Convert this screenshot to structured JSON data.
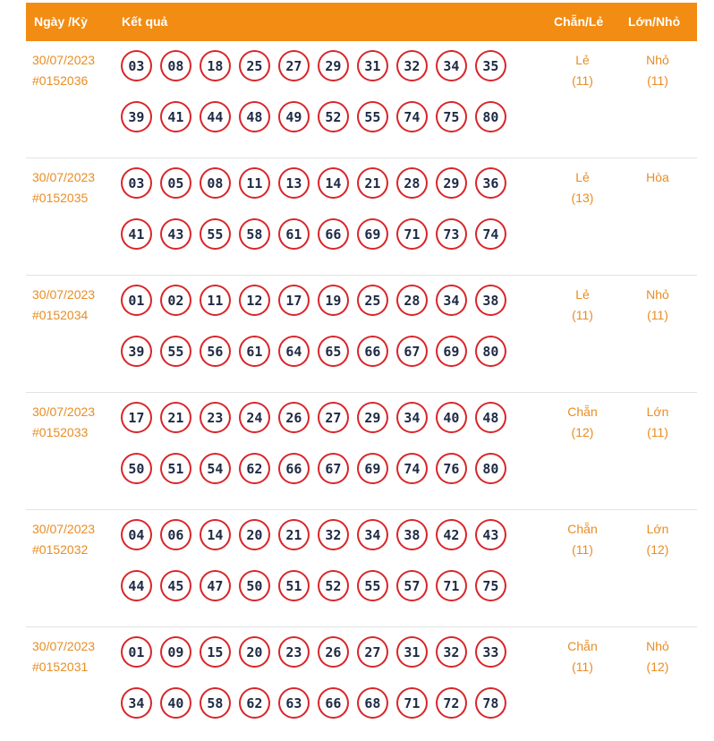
{
  "header": {
    "date_label": "Ngày /Kỳ",
    "result_label": "Kết quả",
    "even_odd_label": "Chẵn/Lẻ",
    "size_label": "Lớn/Nhỏ"
  },
  "rows": [
    {
      "date": "30/07/2023",
      "period": "#0152036",
      "numbers_1": [
        "03",
        "08",
        "18",
        "25",
        "27",
        "29",
        "31",
        "32",
        "34",
        "35"
      ],
      "numbers_2": [
        "39",
        "41",
        "44",
        "48",
        "49",
        "52",
        "55",
        "74",
        "75",
        "80"
      ],
      "even_odd": "Lẻ",
      "even_odd_count": "(11)",
      "size": "Nhỏ",
      "size_count": "(11)"
    },
    {
      "date": "30/07/2023",
      "period": "#0152035",
      "numbers_1": [
        "03",
        "05",
        "08",
        "11",
        "13",
        "14",
        "21",
        "28",
        "29",
        "36"
      ],
      "numbers_2": [
        "41",
        "43",
        "55",
        "58",
        "61",
        "66",
        "69",
        "71",
        "73",
        "74"
      ],
      "even_odd": "Lẻ",
      "even_odd_count": "(13)",
      "size": "Hòa",
      "size_count": ""
    },
    {
      "date": "30/07/2023",
      "period": "#0152034",
      "numbers_1": [
        "01",
        "02",
        "11",
        "12",
        "17",
        "19",
        "25",
        "28",
        "34",
        "38"
      ],
      "numbers_2": [
        "39",
        "55",
        "56",
        "61",
        "64",
        "65",
        "66",
        "67",
        "69",
        "80"
      ],
      "even_odd": "Lẻ",
      "even_odd_count": "(11)",
      "size": "Nhỏ",
      "size_count": "(11)"
    },
    {
      "date": "30/07/2023",
      "period": "#0152033",
      "numbers_1": [
        "17",
        "21",
        "23",
        "24",
        "26",
        "27",
        "29",
        "34",
        "40",
        "48"
      ],
      "numbers_2": [
        "50",
        "51",
        "54",
        "62",
        "66",
        "67",
        "69",
        "74",
        "76",
        "80"
      ],
      "even_odd": "Chẵn",
      "even_odd_count": "(12)",
      "size": "Lớn",
      "size_count": "(11)"
    },
    {
      "date": "30/07/2023",
      "period": "#0152032",
      "numbers_1": [
        "04",
        "06",
        "14",
        "20",
        "21",
        "32",
        "34",
        "38",
        "42",
        "43"
      ],
      "numbers_2": [
        "44",
        "45",
        "47",
        "50",
        "51",
        "52",
        "55",
        "57",
        "71",
        "75"
      ],
      "even_odd": "Chẵn",
      "even_odd_count": "(11)",
      "size": "Lớn",
      "size_count": "(12)"
    },
    {
      "date": "30/07/2023",
      "period": "#0152031",
      "numbers_1": [
        "01",
        "09",
        "15",
        "20",
        "23",
        "26",
        "27",
        "31",
        "32",
        "33"
      ],
      "numbers_2": [
        "34",
        "40",
        "58",
        "62",
        "63",
        "66",
        "68",
        "71",
        "72",
        "78"
      ],
      "even_odd": "Chẵn",
      "even_odd_count": "(11)",
      "size": "Nhỏ",
      "size_count": "(12)"
    }
  ],
  "colors": {
    "header_bg": "#f28c13",
    "accent_text": "#e88d24",
    "ball_border": "#d8262a",
    "ball_text": "#1f2a44"
  }
}
